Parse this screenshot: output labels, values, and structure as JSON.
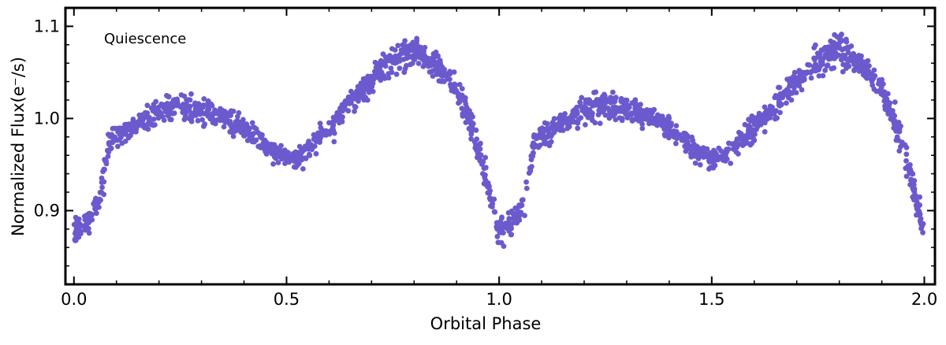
{
  "chart_data": {
    "type": "scatter",
    "title": "",
    "annotation": "Quiescence",
    "xlabel": "Orbital Phase",
    "ylabel": "Normalized Flux(e⁻/s)",
    "xlim": [
      -0.02,
      2.025
    ],
    "ylim": [
      0.82,
      1.12
    ],
    "xticks": [
      0.0,
      0.5,
      1.0,
      1.5,
      2.0
    ],
    "xtick_labels": [
      "0.0",
      "0.5",
      "1.0",
      "1.5",
      "2.0"
    ],
    "yticks": [
      0.9,
      1.0,
      1.1
    ],
    "ytick_labels": [
      "0.9",
      "1.0",
      "1.1"
    ],
    "minor_xtick_step": 0.1,
    "minor_ytick_step": 0.02,
    "grid": false,
    "legend": "none",
    "marker_color": "#6a5acd",
    "series": [
      {
        "x": [
          0.0,
          0.02,
          0.04,
          0.06,
          0.07,
          0.08,
          0.1,
          0.13,
          0.16,
          0.19,
          0.22,
          0.25,
          0.28,
          0.31,
          0.34,
          0.37,
          0.4,
          0.43,
          0.46,
          0.49,
          0.52,
          0.55,
          0.58,
          0.61,
          0.64,
          0.67,
          0.7,
          0.73,
          0.76,
          0.78,
          0.8,
          0.82,
          0.84,
          0.86,
          0.88,
          0.9,
          0.92,
          0.94,
          0.955,
          0.97,
          0.985,
          1.0
        ],
        "y": [
          0.88,
          0.88,
          0.895,
          0.91,
          0.94,
          0.97,
          0.982,
          0.99,
          0.998,
          1.005,
          1.012,
          1.015,
          1.013,
          1.008,
          1.003,
          0.997,
          0.99,
          0.98,
          0.966,
          0.957,
          0.958,
          0.966,
          0.98,
          0.995,
          1.01,
          1.025,
          1.04,
          1.055,
          1.065,
          1.072,
          1.075,
          1.07,
          1.062,
          1.055,
          1.045,
          1.03,
          1.01,
          0.985,
          0.96,
          0.935,
          0.905,
          0.875
        ],
        "spread": [
          0.012,
          0.012,
          0.012,
          0.012,
          0.015,
          0.012,
          0.01,
          0.01,
          0.01,
          0.011,
          0.012,
          0.012,
          0.012,
          0.011,
          0.01,
          0.01,
          0.009,
          0.009,
          0.009,
          0.009,
          0.009,
          0.01,
          0.011,
          0.011,
          0.011,
          0.011,
          0.011,
          0.012,
          0.014,
          0.014,
          0.015,
          0.013,
          0.012,
          0.011,
          0.01,
          0.01,
          0.012,
          0.015,
          0.015,
          0.014,
          0.013,
          0.01
        ]
      }
    ]
  }
}
